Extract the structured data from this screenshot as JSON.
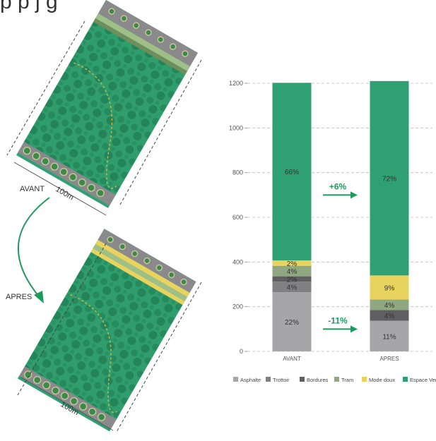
{
  "header": {
    "partial_title": "p                        p   j         g"
  },
  "illustration": {
    "label_before": "AVANT",
    "label_after": "APRES",
    "dimension_top": "100m",
    "dimension_bottom": "100m"
  },
  "chart_data": {
    "type": "bar",
    "stacked": true,
    "categories": [
      "AVANT",
      "APRES"
    ],
    "ylim": [
      0,
      1200
    ],
    "yticks": [
      "0",
      "200",
      "400",
      "600",
      "800",
      "1000",
      "1200"
    ],
    "grid": true,
    "legend_position": "bottom",
    "series": [
      {
        "name": "Asphalte",
        "color": "#a6a6a8",
        "values": [
          265,
          137
        ],
        "labels": [
          "22%",
          "11%"
        ]
      },
      {
        "name": "Trottoir",
        "color": "#808082",
        "values": [
          47,
          0
        ],
        "labels": [
          "4%",
          ""
        ]
      },
      {
        "name": "Bordures",
        "color": "#5f5f61",
        "values": [
          24,
          48
        ],
        "labels": [
          "2%",
          "4%"
        ]
      },
      {
        "name": "Tram",
        "color": "#8fa882",
        "values": [
          47,
          47
        ],
        "labels": [
          "4%",
          "4%"
        ]
      },
      {
        "name": "Mode doux",
        "color": "#e8d35e",
        "values": [
          24,
          108
        ],
        "labels": [
          "2%",
          "9%"
        ]
      },
      {
        "name": "Espace Verts",
        "color": "#2fa072",
        "values": [
          795,
          870
        ],
        "labels": [
          "66%",
          "72%"
        ]
      }
    ],
    "annotations": [
      {
        "text": "+6%",
        "color": "#1f9a5d"
      },
      {
        "text": "-11%",
        "color": "#1f9a5d"
      }
    ]
  }
}
